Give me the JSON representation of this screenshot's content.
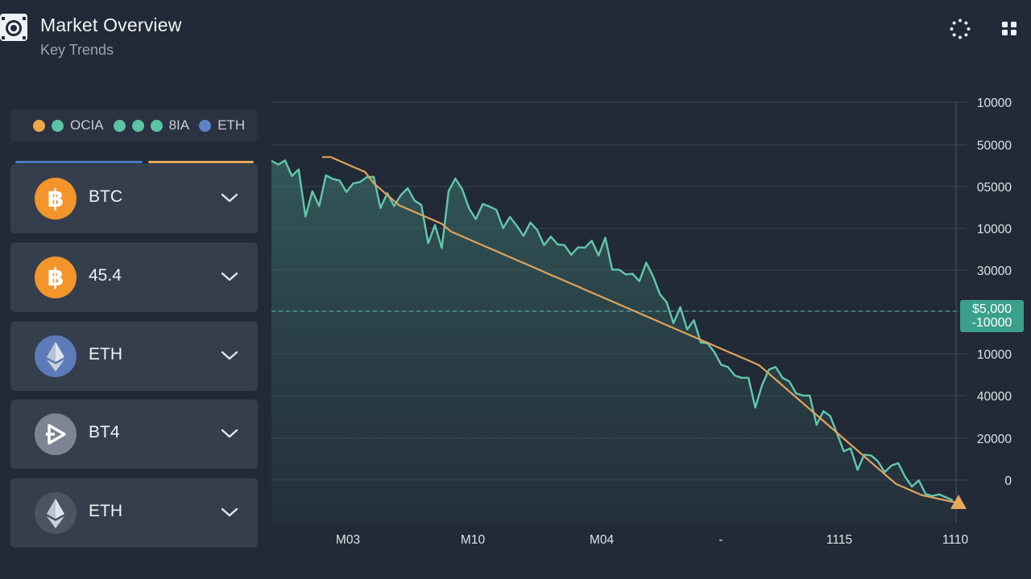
{
  "header": {
    "title": "Market Overview",
    "subtitle": "Key Trends",
    "logo_icon": "camera-logo-icon",
    "loading_icon": "loading-spinner-icon",
    "menu_icon": "grid-menu-icon"
  },
  "legend": {
    "items": [
      {
        "label": "",
        "color": "#f2a64a"
      },
      {
        "label": "OCIA",
        "color": "#5cc3a3"
      },
      {
        "label": "",
        "color": "#5cc3a3"
      },
      {
        "label": "",
        "color": "#5cc3a3"
      },
      {
        "label": "8IA",
        "color": "#5cc3a3"
      },
      {
        "label": "ETH",
        "color": "#5b84c4"
      }
    ]
  },
  "tab_colors": [
    "#4c7bc3",
    "#e8a85c"
  ],
  "coins": [
    {
      "label": "BTC",
      "icon": "bitcoin-icon",
      "color": "#f3952b"
    },
    {
      "label": "45.4",
      "icon": "bitcoin-icon",
      "color": "#f3952b"
    },
    {
      "label": "ETH",
      "icon": "ethereum-icon",
      "color": "#5c7bb8"
    },
    {
      "label": "BT4",
      "icon": "play-logo-icon",
      "color": "#7c8591"
    },
    {
      "label": "ETH",
      "icon": "ethereum-icon",
      "color": "#4b5462"
    }
  ],
  "price_marker": {
    "line1": "$5,000",
    "line2": "-10000",
    "color": "#3aa08b"
  },
  "chart_data": {
    "type": "line",
    "y_tick_labels": [
      "10000",
      "50000",
      "05000",
      "10000",
      "30000",
      "",
      "10000",
      "40000",
      "20000",
      "0"
    ],
    "x_tick_labels": [
      "M03",
      "M10",
      "M04",
      "-",
      "1115",
      "1110"
    ],
    "series": [
      {
        "color": "#63c7ad",
        "values": [
          92,
          91,
          92.1,
          87.9,
          89.7,
          77,
          83.8,
          79.8,
          88.1,
          87.1,
          86.7,
          83.6,
          85.9,
          86.3,
          87.6,
          87.7,
          79.3,
          83.3,
          79.8,
          82.8,
          84.6,
          81.3,
          80.1,
          69.8,
          74.7,
          68.5,
          83.9,
          87.2,
          84.3,
          79.2,
          76.3,
          80.4,
          79.7,
          78.8,
          73.9,
          76.9,
          74.5,
          71.8,
          75.4,
          73.4,
          69.3,
          71.6,
          69.5,
          69.3,
          66.7,
          68.7,
          68.6,
          70.5,
          66.5,
          71.3,
          62.7,
          62.7,
          61.4,
          61.6,
          59.6,
          64.6,
          60.9,
          56.1,
          53.9,
          48.3,
          52.6,
          46.6,
          49.1,
          43.1,
          42.9,
          40.5,
          37.1,
          36.5,
          34.2,
          33.6,
          33.6,
          25.6,
          31.6,
          35.8,
          36.5,
          33.6,
          32.6,
          29.4,
          28.8,
          28.8,
          20.9,
          24.6,
          23.3,
          18.6,
          13.8,
          14.6,
          8.8,
          12.9,
          12.7,
          11.1,
          8.2,
          10,
          10.6,
          6.9,
          4.3,
          6,
          2.3,
          1.8,
          2.2,
          1.4,
          0.6
        ]
      },
      {
        "color": "#e0a35e",
        "values": [
          93,
          93,
          92,
          91,
          90,
          89,
          86,
          84,
          82,
          80,
          79,
          78,
          77,
          76,
          75,
          73,
          72,
          71,
          70,
          69,
          68,
          67,
          66,
          65,
          64,
          63,
          62,
          61,
          60,
          59,
          58,
          57,
          56,
          55,
          54,
          53,
          52,
          51,
          50,
          49,
          48,
          47,
          46,
          45,
          44,
          43,
          42,
          41,
          40,
          39,
          38,
          37,
          35,
          33,
          31,
          29,
          27,
          25,
          23,
          21,
          19,
          17,
          15,
          13,
          11,
          9,
          7,
          5,
          4,
          3,
          2,
          1.5,
          1,
          0.5,
          0
        ]
      }
    ]
  }
}
